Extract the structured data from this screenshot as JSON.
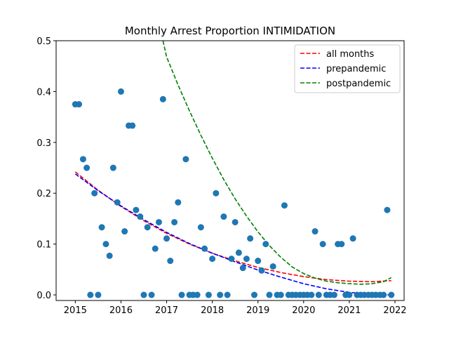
{
  "chart_data": {
    "type": "scatter",
    "title": "Monthly Arrest Proportion INTIMIDATION",
    "xlabel": "",
    "ylabel": "",
    "xlim": [
      2014.58,
      2022.2
    ],
    "ylim": [
      -0.011,
      0.5
    ],
    "xticks": [
      2015,
      2016,
      2017,
      2018,
      2019,
      2020,
      2021,
      2022
    ],
    "xtick_labels": [
      "2015",
      "2016",
      "2017",
      "2018",
      "2019",
      "2020",
      "2021",
      "2022"
    ],
    "yticks": [
      0.0,
      0.1,
      0.2,
      0.3,
      0.4,
      0.5
    ],
    "ytick_labels": [
      "0.0",
      "0.1",
      "0.2",
      "0.3",
      "0.4",
      "0.5"
    ],
    "grid": false,
    "legend_position": "top-right",
    "scatter": {
      "color": "#1f77b4",
      "points": [
        [
          2015.0,
          0.375
        ],
        [
          2015.08,
          0.375
        ],
        [
          2015.17,
          0.267
        ],
        [
          2015.25,
          0.25
        ],
        [
          2015.33,
          0.0
        ],
        [
          2015.42,
          0.2
        ],
        [
          2015.5,
          0.0
        ],
        [
          2015.58,
          0.133
        ],
        [
          2015.67,
          0.1
        ],
        [
          2015.75,
          0.077
        ],
        [
          2015.83,
          0.25
        ],
        [
          2015.92,
          0.182
        ],
        [
          2016.0,
          0.4
        ],
        [
          2016.08,
          0.125
        ],
        [
          2016.17,
          0.333
        ],
        [
          2016.25,
          0.333
        ],
        [
          2016.33,
          0.167
        ],
        [
          2016.42,
          0.154
        ],
        [
          2016.5,
          0.0
        ],
        [
          2016.58,
          0.133
        ],
        [
          2016.67,
          0.0
        ],
        [
          2016.75,
          0.091
        ],
        [
          2016.83,
          0.143
        ],
        [
          2016.92,
          0.385
        ],
        [
          2017.0,
          0.111
        ],
        [
          2017.08,
          0.067
        ],
        [
          2017.17,
          0.143
        ],
        [
          2017.25,
          0.182
        ],
        [
          2017.33,
          0.0
        ],
        [
          2017.42,
          0.267
        ],
        [
          2017.5,
          0.0
        ],
        [
          2017.58,
          0.0
        ],
        [
          2017.67,
          0.0
        ],
        [
          2017.75,
          0.133
        ],
        [
          2017.83,
          0.091
        ],
        [
          2017.92,
          0.0
        ],
        [
          2018.0,
          0.071
        ],
        [
          2018.08,
          0.2
        ],
        [
          2018.17,
          0.0
        ],
        [
          2018.25,
          0.154
        ],
        [
          2018.33,
          0.0
        ],
        [
          2018.42,
          0.071
        ],
        [
          2018.5,
          0.143
        ],
        [
          2018.58,
          0.083
        ],
        [
          2018.67,
          0.053
        ],
        [
          2018.75,
          0.071
        ],
        [
          2018.83,
          0.111
        ],
        [
          2018.92,
          0.0
        ],
        [
          2019.0,
          0.067
        ],
        [
          2019.08,
          0.048
        ],
        [
          2019.17,
          0.1
        ],
        [
          2019.25,
          0.0
        ],
        [
          2019.33,
          0.056
        ],
        [
          2019.42,
          0.0
        ],
        [
          2019.5,
          0.0
        ],
        [
          2019.58,
          0.176
        ],
        [
          2019.67,
          0.0
        ],
        [
          2019.75,
          0.0
        ],
        [
          2019.83,
          0.0
        ],
        [
          2019.92,
          0.0
        ],
        [
          2020.0,
          0.0
        ],
        [
          2020.08,
          0.0
        ],
        [
          2020.17,
          0.0
        ],
        [
          2020.25,
          0.125
        ],
        [
          2020.33,
          0.0
        ],
        [
          2020.42,
          0.1
        ],
        [
          2020.5,
          0.0
        ],
        [
          2020.58,
          0.0
        ],
        [
          2020.67,
          0.0
        ],
        [
          2020.75,
          0.1
        ],
        [
          2020.83,
          0.1
        ],
        [
          2020.92,
          0.0
        ],
        [
          2021.0,
          0.0
        ],
        [
          2021.08,
          0.111
        ],
        [
          2021.17,
          0.0
        ],
        [
          2021.25,
          0.0
        ],
        [
          2021.33,
          0.0
        ],
        [
          2021.42,
          0.0
        ],
        [
          2021.5,
          0.0
        ],
        [
          2021.58,
          0.0
        ],
        [
          2021.67,
          0.0
        ],
        [
          2021.75,
          0.0
        ],
        [
          2021.83,
          0.167
        ],
        [
          2021.92,
          0.0
        ]
      ]
    },
    "series": [
      {
        "name": "all months",
        "color": "#ff0000",
        "style": "dashed",
        "x": [
          2015.0,
          2015.5,
          2016.0,
          2016.5,
          2017.0,
          2017.5,
          2018.0,
          2018.5,
          2019.0,
          2019.5,
          2020.0,
          2020.5,
          2021.0,
          2021.5,
          2021.92
        ],
        "y": [
          0.242,
          0.206,
          0.174,
          0.146,
          0.121,
          0.1,
          0.082,
          0.067,
          0.054,
          0.044,
          0.036,
          0.03,
          0.027,
          0.026,
          0.028
        ]
      },
      {
        "name": "prepandemic",
        "color": "#0000ff",
        "style": "dashed",
        "x": [
          2015.0,
          2015.5,
          2016.0,
          2016.5,
          2017.0,
          2017.5,
          2018.0,
          2018.5,
          2019.0,
          2019.5,
          2020.0,
          2020.5,
          2021.0,
          2021.5,
          2021.92
        ],
        "y": [
          0.238,
          0.205,
          0.175,
          0.148,
          0.123,
          0.101,
          0.082,
          0.065,
          0.049,
          0.035,
          0.022,
          0.012,
          0.005,
          0.001,
          0.0
        ]
      },
      {
        "name": "postpandemic",
        "color": "#008000",
        "style": "dashed",
        "x": [
          2016.92,
          2017.0,
          2017.25,
          2017.5,
          2017.75,
          2018.0,
          2018.25,
          2018.5,
          2018.75,
          2019.0,
          2019.25,
          2019.5,
          2019.75,
          2020.0,
          2020.25,
          2020.5,
          2020.75,
          2021.0,
          2021.25,
          2021.5,
          2021.75,
          2021.92
        ],
        "y": [
          0.5,
          0.468,
          0.413,
          0.362,
          0.314,
          0.269,
          0.227,
          0.189,
          0.155,
          0.124,
          0.097,
          0.074,
          0.055,
          0.042,
          0.033,
          0.027,
          0.024,
          0.022,
          0.021,
          0.022,
          0.026,
          0.034
        ]
      }
    ]
  }
}
